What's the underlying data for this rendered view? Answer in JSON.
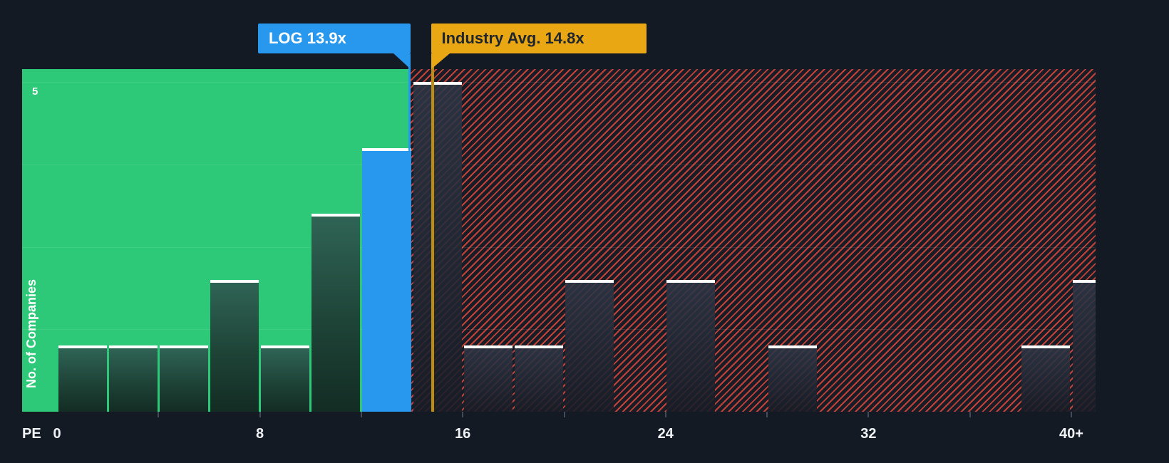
{
  "chart_data": {
    "type": "bar",
    "title": "",
    "xlabel": "PE",
    "ylabel": "No. of Companies",
    "ylim": [
      0,
      5
    ],
    "y_gridline_label": "5",
    "x_axis_ticks": [
      {
        "value": 0,
        "label": "0"
      },
      {
        "value": 8,
        "label": "8"
      },
      {
        "value": 16,
        "label": "16"
      },
      {
        "value": 24,
        "label": "24"
      },
      {
        "value": 32,
        "label": "32"
      },
      {
        "value": 40,
        "label": "40+"
      }
    ],
    "minor_tick_values": [
      4,
      8,
      12,
      16,
      20,
      24,
      28,
      32,
      36,
      40
    ],
    "gridline_counts": [
      1.25,
      2.5,
      3.75,
      5
    ],
    "bucket_size": 2,
    "bars": [
      {
        "pe_from": 0,
        "pe_to": 2,
        "count": 1,
        "zone": "green"
      },
      {
        "pe_from": 2,
        "pe_to": 4,
        "count": 1,
        "zone": "green"
      },
      {
        "pe_from": 4,
        "pe_to": 6,
        "count": 1,
        "zone": "green"
      },
      {
        "pe_from": 6,
        "pe_to": 8,
        "count": 2,
        "zone": "green"
      },
      {
        "pe_from": 8,
        "pe_to": 10,
        "count": 1,
        "zone": "green"
      },
      {
        "pe_from": 10,
        "pe_to": 12,
        "count": 3,
        "zone": "green"
      },
      {
        "pe_from": 12,
        "pe_to": 14,
        "count": 4,
        "zone": "company"
      },
      {
        "pe_from": 14,
        "pe_to": 16,
        "count": 5,
        "zone": "red"
      },
      {
        "pe_from": 16,
        "pe_to": 18,
        "count": 1,
        "zone": "red"
      },
      {
        "pe_from": 18,
        "pe_to": 20,
        "count": 1,
        "zone": "red"
      },
      {
        "pe_from": 20,
        "pe_to": 22,
        "count": 2,
        "zone": "red"
      },
      {
        "pe_from": 24,
        "pe_to": 26,
        "count": 2,
        "zone": "red"
      },
      {
        "pe_from": 28,
        "pe_to": 30,
        "count": 1,
        "zone": "red"
      },
      {
        "pe_from": 38,
        "pe_to": 40,
        "count": 1,
        "zone": "red"
      },
      {
        "pe_from": 40,
        "pe_to": 42,
        "count": 2,
        "zone": "red",
        "clipped": true
      }
    ],
    "company_marker": {
      "label": "LOG 13.9x",
      "value": 13.9
    },
    "industry_marker": {
      "label": "Industry Avg. 14.8x",
      "value": 14.8
    }
  },
  "colors": {
    "background": "#141a23",
    "green_zone": "#2dc878",
    "red_zone_bg": "#171c26",
    "hatch_red": "#e0493b",
    "company_accent": "#2897ee",
    "industry_accent": "#e9a713",
    "industry_line": "#bd8d10",
    "bar_cap": "#ffffff",
    "axis_text": "#f0f3f6"
  }
}
